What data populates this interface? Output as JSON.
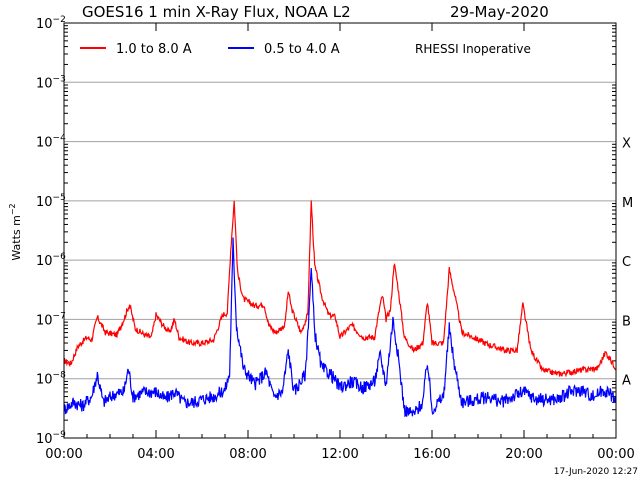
{
  "chart_data": {
    "type": "line",
    "title": "GOES16 1 min X-Ray Flux, NOAA L2",
    "date": "29-May-2020",
    "ylabel_main": "Watts m",
    "ylabel_exp": "−2",
    "ylim_exponents": [
      -9,
      -2
    ],
    "y_scale": "log",
    "grid": "horizontal",
    "legend_position": "top-left",
    "note": "RHESSI Inoperative",
    "footer": "17-Jun-2020 12:27",
    "y_ticks": [
      {
        "base": "10",
        "exp": "−2",
        "power": -2
      },
      {
        "base": "10",
        "exp": "−3",
        "power": -3
      },
      {
        "base": "10",
        "exp": "−4",
        "power": -4
      },
      {
        "base": "10",
        "exp": "−5",
        "power": -5
      },
      {
        "base": "10",
        "exp": "−6",
        "power": -6
      },
      {
        "base": "10",
        "exp": "−7",
        "power": -7
      },
      {
        "base": "10",
        "exp": "−8",
        "power": -8
      },
      {
        "base": "10",
        "exp": "−9",
        "power": -9
      }
    ],
    "x_ticks": [
      "00:00",
      "04:00",
      "08:00",
      "12:00",
      "16:00",
      "20:00",
      "00:00"
    ],
    "flare_classes": [
      {
        "label": "X",
        "power": -4
      },
      {
        "label": "M",
        "power": -5
      },
      {
        "label": "C",
        "power": -6
      },
      {
        "label": "B",
        "power": -7
      },
      {
        "label": "A",
        "power": -8
      }
    ],
    "x_unit": "hours",
    "series": [
      {
        "name": "1.0 to 8.0 A",
        "color": "#ff0000",
        "points": [
          [
            0.0,
            2e-08
          ],
          [
            0.3,
            1.8e-08
          ],
          [
            0.6,
            3.5e-08
          ],
          [
            1.0,
            5e-08
          ],
          [
            1.2,
            4.5e-08
          ],
          [
            1.45,
            1.1e-07
          ],
          [
            1.8,
            6e-08
          ],
          [
            2.3,
            5.5e-08
          ],
          [
            2.6,
            1e-07
          ],
          [
            2.85,
            1.8e-07
          ],
          [
            3.1,
            7e-08
          ],
          [
            3.5,
            5.5e-08
          ],
          [
            3.8,
            5e-08
          ],
          [
            4.0,
            1.2e-07
          ],
          [
            4.3,
            8e-08
          ],
          [
            4.6,
            6e-08
          ],
          [
            4.8,
            1e-07
          ],
          [
            5.0,
            5e-08
          ],
          [
            5.5,
            4e-08
          ],
          [
            6.0,
            4e-08
          ],
          [
            6.5,
            4.5e-08
          ],
          [
            6.9,
            1.2e-07
          ],
          [
            7.1,
            1.3e-07
          ],
          [
            7.25,
            1.5e-06
          ],
          [
            7.4,
            1e-05
          ],
          [
            7.55,
            6e-07
          ],
          [
            7.8,
            2.2e-07
          ],
          [
            8.3,
            1.7e-07
          ],
          [
            8.7,
            1.8e-07
          ],
          [
            8.9,
            8e-08
          ],
          [
            9.2,
            6e-08
          ],
          [
            9.6,
            8e-08
          ],
          [
            9.75,
            3e-07
          ],
          [
            9.9,
            1.5e-07
          ],
          [
            10.3,
            6e-08
          ],
          [
            10.6,
            1.2e-07
          ],
          [
            10.75,
            1e-05
          ],
          [
            10.9,
            8e-07
          ],
          [
            11.2,
            2.5e-07
          ],
          [
            11.5,
            1.2e-07
          ],
          [
            11.8,
            1.1e-07
          ],
          [
            12.0,
            5e-08
          ],
          [
            12.5,
            8e-08
          ],
          [
            13.0,
            5e-08
          ],
          [
            13.5,
            5e-08
          ],
          [
            13.75,
            1.8e-07
          ],
          [
            13.85,
            2.5e-07
          ],
          [
            14.0,
            1e-07
          ],
          [
            14.2,
            1.5e-07
          ],
          [
            14.35,
            9e-07
          ],
          [
            14.5,
            4e-07
          ],
          [
            14.8,
            5e-08
          ],
          [
            15.2,
            3e-08
          ],
          [
            15.6,
            4e-08
          ],
          [
            15.8,
            2e-07
          ],
          [
            16.0,
            4e-08
          ],
          [
            16.5,
            4e-08
          ],
          [
            16.75,
            7e-07
          ],
          [
            17.0,
            2.5e-07
          ],
          [
            17.3,
            6e-08
          ],
          [
            17.8,
            5e-08
          ],
          [
            18.3,
            4e-08
          ],
          [
            18.7,
            3.5e-08
          ],
          [
            19.2,
            3e-08
          ],
          [
            19.7,
            3e-08
          ],
          [
            19.95,
            1.8e-07
          ],
          [
            20.3,
            3e-08
          ],
          [
            20.8,
            1.4e-08
          ],
          [
            21.5,
            1.2e-08
          ],
          [
            22.5,
            1.4e-08
          ],
          [
            23.2,
            1.5e-08
          ],
          [
            23.55,
            2.8e-08
          ],
          [
            24.0,
            1.5e-08
          ]
        ]
      },
      {
        "name": "0.5 to 4.0 A",
        "color": "#0000ff",
        "points": [
          [
            0.0,
            3e-09
          ],
          [
            0.4,
            4e-09
          ],
          [
            0.8,
            3.5e-09
          ],
          [
            1.2,
            5e-09
          ],
          [
            1.45,
            1.2e-08
          ],
          [
            1.7,
            4e-09
          ],
          [
            2.2,
            5.5e-09
          ],
          [
            2.6,
            6e-09
          ],
          [
            2.8,
            1.5e-08
          ],
          [
            3.0,
            5e-09
          ],
          [
            3.5,
            6e-09
          ],
          [
            4.0,
            6e-09
          ],
          [
            4.4,
            4.5e-09
          ],
          [
            4.8,
            6e-09
          ],
          [
            5.2,
            4e-09
          ],
          [
            5.6,
            4e-09
          ],
          [
            6.0,
            4.5e-09
          ],
          [
            6.5,
            5e-09
          ],
          [
            7.0,
            6.5e-09
          ],
          [
            7.2,
            1.2e-08
          ],
          [
            7.35,
            2e-06
          ],
          [
            7.5,
            8e-08
          ],
          [
            7.8,
            1.5e-08
          ],
          [
            8.3,
            8e-09
          ],
          [
            8.8,
            1.3e-08
          ],
          [
            9.1,
            5e-09
          ],
          [
            9.5,
            6e-09
          ],
          [
            9.75,
            3e-08
          ],
          [
            10.0,
            6e-09
          ],
          [
            10.5,
            1.2e-08
          ],
          [
            10.75,
            7e-07
          ],
          [
            10.9,
            6e-08
          ],
          [
            11.2,
            1.5e-08
          ],
          [
            11.6,
            1.2e-08
          ],
          [
            12.0,
            7e-09
          ],
          [
            12.5,
            9e-09
          ],
          [
            13.0,
            7e-09
          ],
          [
            13.5,
            9e-09
          ],
          [
            13.75,
            2.5e-08
          ],
          [
            14.0,
            8e-09
          ],
          [
            14.3,
            1e-07
          ],
          [
            14.5,
            3e-08
          ],
          [
            14.8,
            3e-09
          ],
          [
            15.2,
            2.5e-09
          ],
          [
            15.6,
            4e-09
          ],
          [
            15.8,
            2e-08
          ],
          [
            16.0,
            3e-09
          ],
          [
            16.5,
            5e-09
          ],
          [
            16.75,
            7e-08
          ],
          [
            17.0,
            1.5e-08
          ],
          [
            17.3,
            4e-09
          ],
          [
            18.0,
            4.5e-09
          ],
          [
            18.5,
            5e-09
          ],
          [
            19.0,
            4e-09
          ],
          [
            19.5,
            5e-09
          ],
          [
            20.0,
            6e-09
          ],
          [
            20.5,
            4.5e-09
          ],
          [
            21.0,
            4.5e-09
          ],
          [
            21.5,
            4.5e-09
          ],
          [
            22.0,
            6e-09
          ],
          [
            22.5,
            6.5e-09
          ],
          [
            23.0,
            5e-09
          ],
          [
            23.5,
            6.5e-09
          ],
          [
            24.0,
            4.5e-09
          ]
        ]
      }
    ]
  }
}
